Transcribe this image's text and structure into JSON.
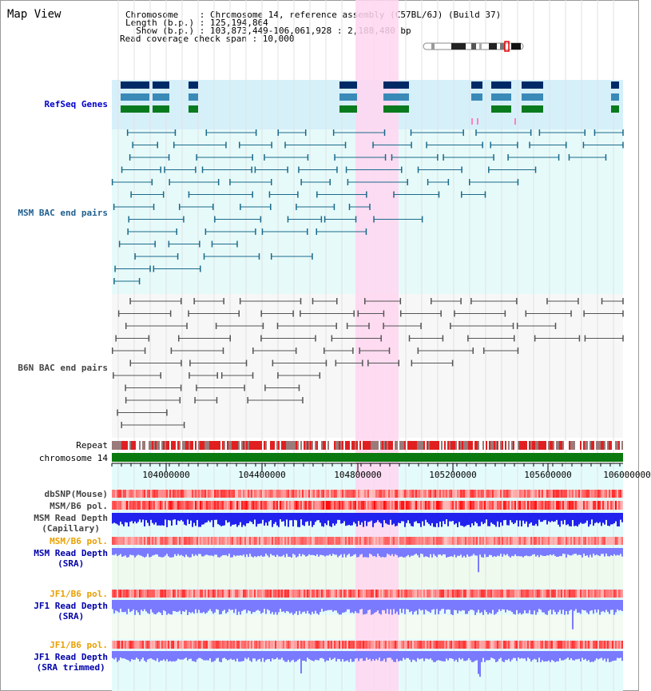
{
  "title": "Map View",
  "info": {
    "line1": "Chromosome    : Chromosome 14, reference assembly (C57BL/6J) (Build 37)",
    "line2": "Length (b.p.) : 125,194,864",
    "line3": "  Show (b.p.) : 103,873,449-106,061,928 : 2,188,480 bp",
    "line4": "Read coverage check span : 10,000"
  },
  "tracks": {
    "refseq": {
      "label": "RefSeq Genes",
      "color": "#0000cc"
    },
    "msm_bac": {
      "label": "MSM BAC end pairs",
      "color": "#1f5f8f"
    },
    "b6n_bac": {
      "label": "B6N BAC end pairs",
      "color": "#444444"
    },
    "repeat": {
      "label": "Repeat"
    },
    "chromosome": {
      "label": "chromosome 14"
    },
    "dbsnp": {
      "label": "dbSNP(Mouse)",
      "color": "#444444"
    },
    "msm_b6_pol": {
      "label": "MSM/B6 pol.",
      "color": "#444444"
    },
    "msm_depth_cap": {
      "line1": "MSM Read Depth",
      "line2": "(Capillary)",
      "color": "#444444"
    },
    "msm_b6_pol_2": {
      "label": "MSM/B6 pol.",
      "color": "#e8a000"
    },
    "msm_depth_sra": {
      "line1": "MSM Read Depth",
      "line2": "(SRA)",
      "color": "#0000aa"
    },
    "jf1_b6_pol": {
      "label": "JF1/B6 pol.",
      "color": "#e8a000"
    },
    "jf1_depth_sra": {
      "line1": "JF1 Read Depth",
      "line2": "(SRA)",
      "color": "#0000aa"
    },
    "jf1_b6_pol_2": {
      "label": "JF1/B6 pol.",
      "color": "#e8a000"
    },
    "jf1_depth_trim": {
      "line1": "JF1 Read Depth",
      "line2": "(SRA trimmed)",
      "color": "#0000aa"
    }
  },
  "axis": {
    "ticks": [
      "104000000",
      "104400000",
      "104800000",
      "105200000",
      "105600000",
      "106000000"
    ]
  },
  "highlight": {
    "start": 104790000,
    "end": 104970000,
    "color": "#ffd6f0"
  },
  "colors": {
    "gene_dark": "#002a66",
    "gene_mid": "#3a8ab8",
    "gene_green": "#0a7a1e",
    "msm_line": "#1a6a8a",
    "b6n_line": "#555555",
    "chrom_bar": "#0a7a10",
    "snp_red": "#ff4444",
    "depth_blue": "#2222ee",
    "depth_light": "#7a7aff"
  }
}
